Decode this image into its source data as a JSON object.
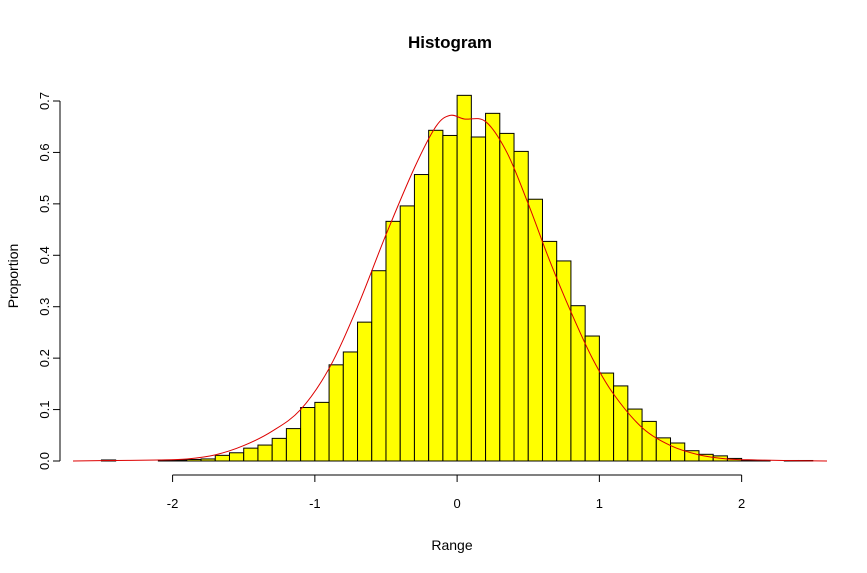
{
  "chart_data": {
    "type": "bar",
    "title": "Histogram",
    "xlabel": "Range",
    "ylabel": "Proportion",
    "xlim": [
      -2.7,
      2.6
    ],
    "ylim": [
      0,
      0.7
    ],
    "x_ticks": [
      -2,
      -1,
      0,
      1,
      2
    ],
    "x_tick_labels": [
      "-2",
      "-1",
      "0",
      "1",
      "2"
    ],
    "y_ticks": [
      0,
      0.1,
      0.2,
      0.3,
      0.4,
      0.5,
      0.6,
      0.7
    ],
    "y_tick_labels": [
      "0.0",
      "0.1",
      "0.2",
      "0.3",
      "0.4",
      "0.5",
      "0.6",
      "0.7"
    ],
    "grid": false,
    "bin_width": 0.1,
    "bins": [
      {
        "x0": -2.5,
        "value": 0.002
      },
      {
        "x0": -2.1,
        "value": 0.002
      },
      {
        "x0": -2.0,
        "value": 0.002
      },
      {
        "x0": -1.9,
        "value": 0.003
      },
      {
        "x0": -1.8,
        "value": 0.004
      },
      {
        "x0": -1.7,
        "value": 0.011
      },
      {
        "x0": -1.6,
        "value": 0.016
      },
      {
        "x0": -1.5,
        "value": 0.025
      },
      {
        "x0": -1.4,
        "value": 0.031
      },
      {
        "x0": -1.3,
        "value": 0.044
      },
      {
        "x0": -1.2,
        "value": 0.063
      },
      {
        "x0": -1.1,
        "value": 0.104
      },
      {
        "x0": -1.0,
        "value": 0.114
      },
      {
        "x0": -0.9,
        "value": 0.187
      },
      {
        "x0": -0.8,
        "value": 0.212
      },
      {
        "x0": -0.7,
        "value": 0.27
      },
      {
        "x0": -0.6,
        "value": 0.37
      },
      {
        "x0": -0.5,
        "value": 0.466
      },
      {
        "x0": -0.4,
        "value": 0.496
      },
      {
        "x0": -0.3,
        "value": 0.557
      },
      {
        "x0": -0.2,
        "value": 0.643
      },
      {
        "x0": -0.1,
        "value": 0.633
      },
      {
        "x0": 0.0,
        "value": 0.711
      },
      {
        "x0": 0.1,
        "value": 0.63
      },
      {
        "x0": 0.2,
        "value": 0.676
      },
      {
        "x0": 0.3,
        "value": 0.637
      },
      {
        "x0": 0.4,
        "value": 0.602
      },
      {
        "x0": 0.5,
        "value": 0.509
      },
      {
        "x0": 0.6,
        "value": 0.427
      },
      {
        "x0": 0.7,
        "value": 0.389
      },
      {
        "x0": 0.8,
        "value": 0.302
      },
      {
        "x0": 0.9,
        "value": 0.243
      },
      {
        "x0": 1.0,
        "value": 0.171
      },
      {
        "x0": 1.1,
        "value": 0.146
      },
      {
        "x0": 1.2,
        "value": 0.101
      },
      {
        "x0": 1.3,
        "value": 0.077
      },
      {
        "x0": 1.4,
        "value": 0.045
      },
      {
        "x0": 1.5,
        "value": 0.035
      },
      {
        "x0": 1.6,
        "value": 0.02
      },
      {
        "x0": 1.7,
        "value": 0.013
      },
      {
        "x0": 1.8,
        "value": 0.01
      },
      {
        "x0": 1.9,
        "value": 0.005
      },
      {
        "x0": 2.0,
        "value": 0.002
      },
      {
        "x0": 2.1,
        "value": 0.001
      },
      {
        "x0": 2.3,
        "value": 0.001
      },
      {
        "x0": 2.4,
        "value": 0.001
      }
    ],
    "density_curve": {
      "x": [
        -2.7,
        -2.4,
        -2.1,
        -1.9,
        -1.7,
        -1.5,
        -1.3,
        -1.1,
        -0.9,
        -0.7,
        -0.5,
        -0.3,
        -0.15,
        -0.05,
        0.05,
        0.2,
        0.35,
        0.5,
        0.65,
        0.8,
        0.95,
        1.1,
        1.3,
        1.5,
        1.7,
        1.9,
        2.1,
        2.3,
        2.6
      ],
      "y": [
        0.0,
        0.001,
        0.002,
        0.004,
        0.012,
        0.03,
        0.058,
        0.1,
        0.18,
        0.3,
        0.44,
        0.57,
        0.65,
        0.672,
        0.665,
        0.66,
        0.6,
        0.5,
        0.39,
        0.29,
        0.2,
        0.13,
        0.065,
        0.03,
        0.012,
        0.004,
        0.002,
        0.001,
        0.0
      ]
    },
    "colors": {
      "bar_fill": "#ffff00",
      "bar_stroke": "#000000",
      "curve": "#dd0000",
      "axis": "#000000"
    }
  }
}
